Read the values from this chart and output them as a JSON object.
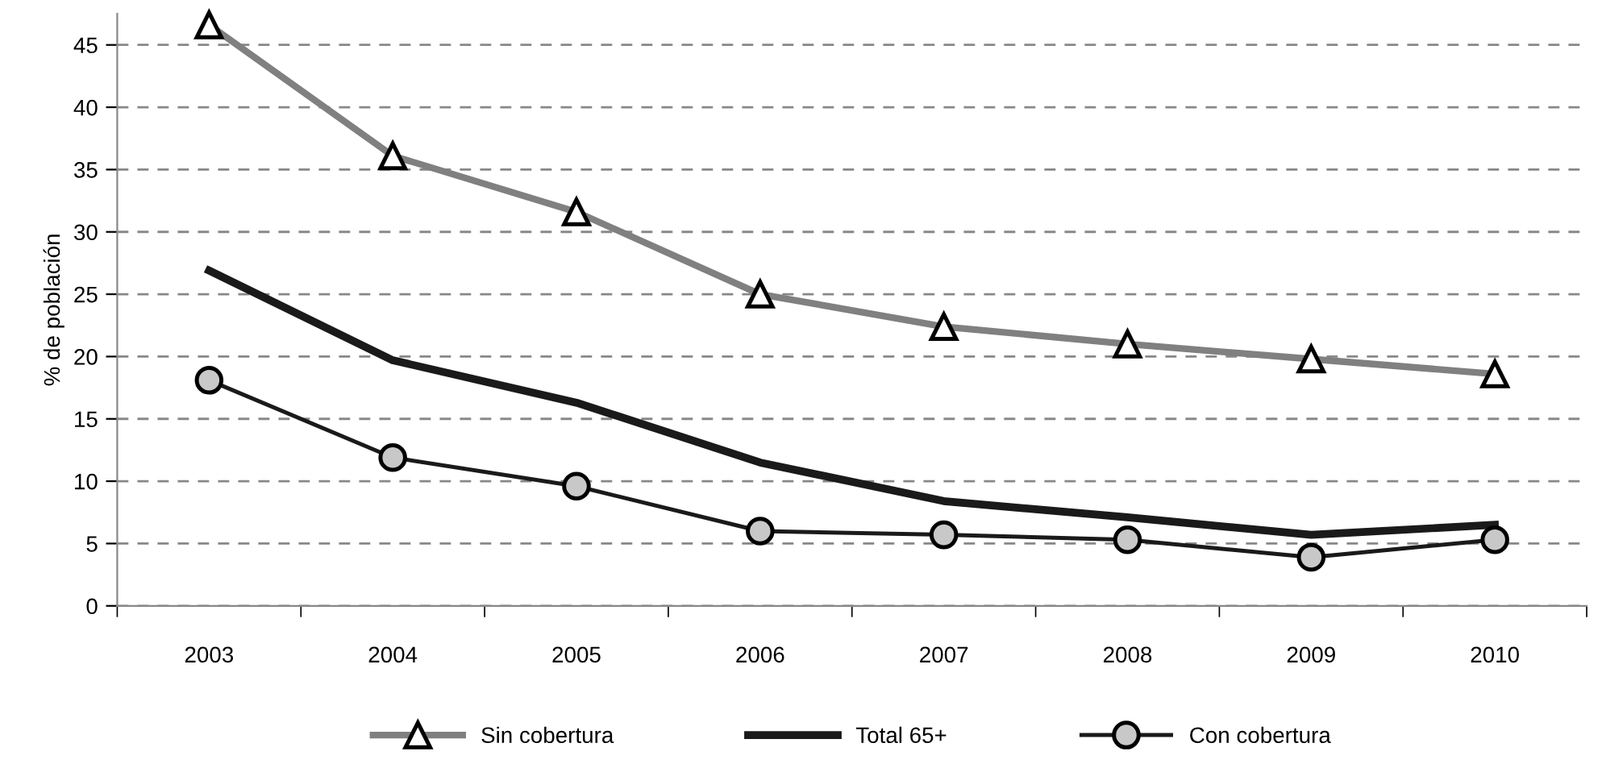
{
  "chart_data": {
    "type": "line",
    "ylabel": "% de población",
    "categories": [
      "2003",
      "2004",
      "2005",
      "2006",
      "2007",
      "2008",
      "2009",
      "2010"
    ],
    "series": [
      {
        "name": "Sin cobertura",
        "color": "#808080",
        "marker": "triangle",
        "values": [
          46.6,
          36.1,
          31.6,
          25,
          22.4,
          21,
          19.8,
          18.6
        ]
      },
      {
        "name": "Total 65+",
        "color": "#1a1a1a",
        "marker": "none",
        "values": [
          26.9,
          19.7,
          16.3,
          11.5,
          8.4,
          7.1,
          5.7,
          6.5
        ]
      },
      {
        "name": "Con cobertura",
        "color": "#1a1a1a",
        "marker": "circle",
        "values": [
          18.1,
          11.9,
          9.6,
          6,
          5.7,
          5.3,
          3.9,
          5.3
        ]
      }
    ],
    "ylim": [
      0,
      47.5
    ],
    "yticks": [
      0,
      5,
      10,
      15,
      20,
      25,
      30,
      35,
      40,
      45
    ],
    "grid": "y",
    "legend": "bottom"
  }
}
